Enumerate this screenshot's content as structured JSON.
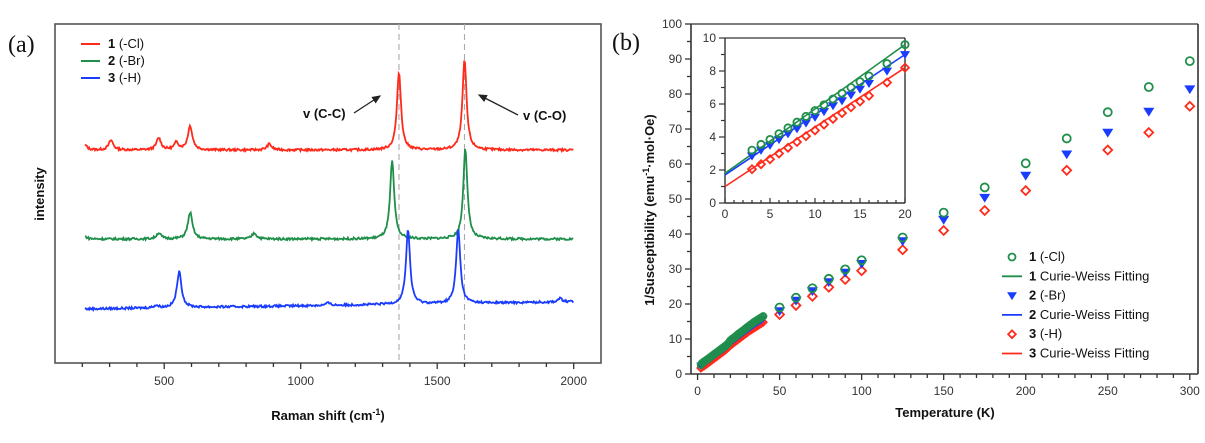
{
  "figure": {
    "panels": [
      {
        "label": "(a)"
      },
      {
        "label": "(b)"
      }
    ]
  },
  "chart_data": [
    {
      "type": "line",
      "panel": "(a)",
      "xlabel": "Raman shift (cm",
      "xlabel_sup": "-1",
      "xlabel_end": ")",
      "ylabel": "intensity",
      "xlim": [
        100,
        2100
      ],
      "xticks": [
        500,
        1000,
        1500,
        2000
      ],
      "xminor_step": 100,
      "yticks_shown": false,
      "grid": false,
      "legend_position": "top-left",
      "reference_lines": [
        1360,
        1600
      ],
      "annotations": [
        {
          "text": "v (C-C)",
          "target_x": 1360
        },
        {
          "text": "v (C-O)",
          "target_x": 1600
        }
      ],
      "series": [
        {
          "name_bold": "1",
          "name_rest": " (-Cl)",
          "color": "#ff2a1a",
          "offset": 2.0,
          "peaks": [
            [
              210,
              0.04
            ],
            [
              305,
              0.08
            ],
            [
              480,
              0.1
            ],
            [
              545,
              0.06
            ],
            [
              595,
              0.2
            ],
            [
              885,
              0.05
            ],
            [
              1360,
              0.65
            ],
            [
              1600,
              0.75
            ]
          ]
        },
        {
          "name_bold": "2",
          "name_rest": " (-Br)",
          "color": "#1f8f4a",
          "offset": 1.0,
          "peaks": [
            [
              210,
              0.02
            ],
            [
              480,
              0.05
            ],
            [
              595,
              0.22
            ],
            [
              830,
              0.05
            ],
            [
              1335,
              0.65
            ],
            [
              1603,
              0.75
            ]
          ]
        },
        {
          "name_bold": "3",
          "name_rest": " (-H)",
          "color": "#1a3cff",
          "offset": 0.0,
          "peaks": [
            [
              470,
              0.02
            ],
            [
              555,
              0.3
            ],
            [
              1100,
              0.02
            ],
            [
              1393,
              0.62
            ],
            [
              1577,
              0.62
            ],
            [
              1950,
              0.03
            ]
          ]
        }
      ]
    },
    {
      "type": "scatter",
      "panel": "(b)",
      "xlabel": "Temperature (K)",
      "ylabel": "1/Susceptibility (emu",
      "ylabel_sup": "-1",
      "ylabel_end": "·mol·Oe)",
      "xlim": [
        -4,
        305
      ],
      "ylim": [
        0,
        100
      ],
      "xticks": [
        0,
        50,
        100,
        150,
        200,
        250,
        300
      ],
      "yticks": [
        0,
        10,
        20,
        30,
        40,
        50,
        60,
        70,
        80,
        90,
        100
      ],
      "grid": false,
      "legend_position": "bottom-right",
      "legend": [
        {
          "marker": "circle",
          "color": "#1f8f4a",
          "bold": "1",
          "text": " (-Cl)"
        },
        {
          "marker": "line",
          "color": "#1f8f4a",
          "bold": "1",
          "text": " Curie-Weiss Fitting"
        },
        {
          "marker": "triangle-down",
          "color": "#1a3cff",
          "bold": "2",
          "text": " (-Br)"
        },
        {
          "marker": "line",
          "color": "#1a3cff",
          "bold": "2",
          "text": " Curie-Weiss Fitting"
        },
        {
          "marker": "diamond",
          "color": "#ff2a1a",
          "bold": "3",
          "text": " (-H)"
        },
        {
          "marker": "line",
          "color": "#ff2a1a",
          "bold": "3",
          "text": " Curie-Weiss Fitting"
        }
      ],
      "x": [
        2,
        3,
        4,
        5,
        6,
        7,
        8,
        9,
        10,
        11,
        12,
        13,
        14,
        15,
        16,
        17,
        18,
        19,
        20,
        21,
        22,
        23,
        24,
        25,
        26,
        27,
        28,
        29,
        30,
        31,
        32,
        33,
        34,
        35,
        36,
        37,
        38,
        39,
        40,
        50,
        60,
        70,
        80,
        90,
        100,
        125,
        150,
        175,
        200,
        225,
        250,
        275,
        300
      ],
      "series": [
        {
          "name": "1 (-Cl)",
          "color": "#1f8f4a",
          "marker": "circle",
          "fit_intercept": 1.8,
          "fit_slope": 0.39,
          "values": [
            2.6,
            3.2,
            3.55,
            3.85,
            4.2,
            4.55,
            4.9,
            5.25,
            5.6,
            5.95,
            6.3,
            6.65,
            7.0,
            7.35,
            7.7,
            8.05,
            8.45,
            8.9,
            9.6,
            10.0,
            10.3,
            10.7,
            11.1,
            11.5,
            11.8,
            12.2,
            12.5,
            12.9,
            13.3,
            13.6,
            14.0,
            14.3,
            14.7,
            15.0,
            15.3,
            15.6,
            15.9,
            16.2,
            16.5,
            19.0,
            21.8,
            24.5,
            27.2,
            29.9,
            32.5,
            39.0,
            46.1,
            53.3,
            60.2,
            67.3,
            74.8,
            82.0,
            89.4
          ]
        },
        {
          "name": "2 (-Br)",
          "color": "#1a3cff",
          "marker": "triangle-down",
          "fit_intercept": 1.7,
          "fit_slope": 0.365,
          "values": [
            2.4,
            2.85,
            3.2,
            3.5,
            3.85,
            4.2,
            4.5,
            4.85,
            5.2,
            5.55,
            5.9,
            6.2,
            6.55,
            6.9,
            7.25,
            7.6,
            8.0,
            8.4,
            9.0,
            9.4,
            9.8,
            10.1,
            10.5,
            10.9,
            11.2,
            11.6,
            11.9,
            12.3,
            12.6,
            13.0,
            13.3,
            13.6,
            14.0,
            14.3,
            14.6,
            14.9,
            15.2,
            15.5,
            15.8,
            18.0,
            21.0,
            23.7,
            26.3,
            29.0,
            31.5,
            38.0,
            44.1,
            50.4,
            56.7,
            62.8,
            69.0,
            75.0,
            81.4
          ]
        },
        {
          "name": "3 (-H)",
          "color": "#ff2a1a",
          "marker": "diamond",
          "fit_intercept": 1.0,
          "fit_slope": 0.36,
          "values": [
            1.7,
            2.05,
            2.35,
            2.65,
            3.0,
            3.35,
            3.7,
            4.05,
            4.4,
            4.75,
            5.1,
            5.45,
            5.8,
            6.15,
            6.5,
            6.85,
            7.3,
            7.7,
            8.2,
            8.5,
            8.9,
            9.3,
            9.6,
            10.0,
            10.3,
            10.7,
            11.0,
            11.4,
            11.7,
            12.1,
            12.4,
            12.7,
            13.0,
            13.3,
            13.6,
            13.9,
            14.2,
            14.5,
            14.8,
            17.0,
            19.6,
            22.2,
            24.8,
            27.0,
            29.5,
            35.5,
            41.0,
            46.7,
            52.4,
            58.2,
            64.0,
            69.0,
            76.5
          ]
        }
      ],
      "inset": {
        "xlim": [
          0,
          20
        ],
        "ylim": [
          0,
          10
        ],
        "xticks": [
          0,
          5,
          10,
          15,
          20
        ],
        "yticks": [
          0,
          2,
          4,
          6,
          8,
          10
        ],
        "x_points": [
          3,
          4,
          5,
          6,
          7,
          8,
          9,
          10,
          11,
          12,
          13,
          14,
          15,
          16,
          18,
          20
        ]
      }
    }
  ]
}
